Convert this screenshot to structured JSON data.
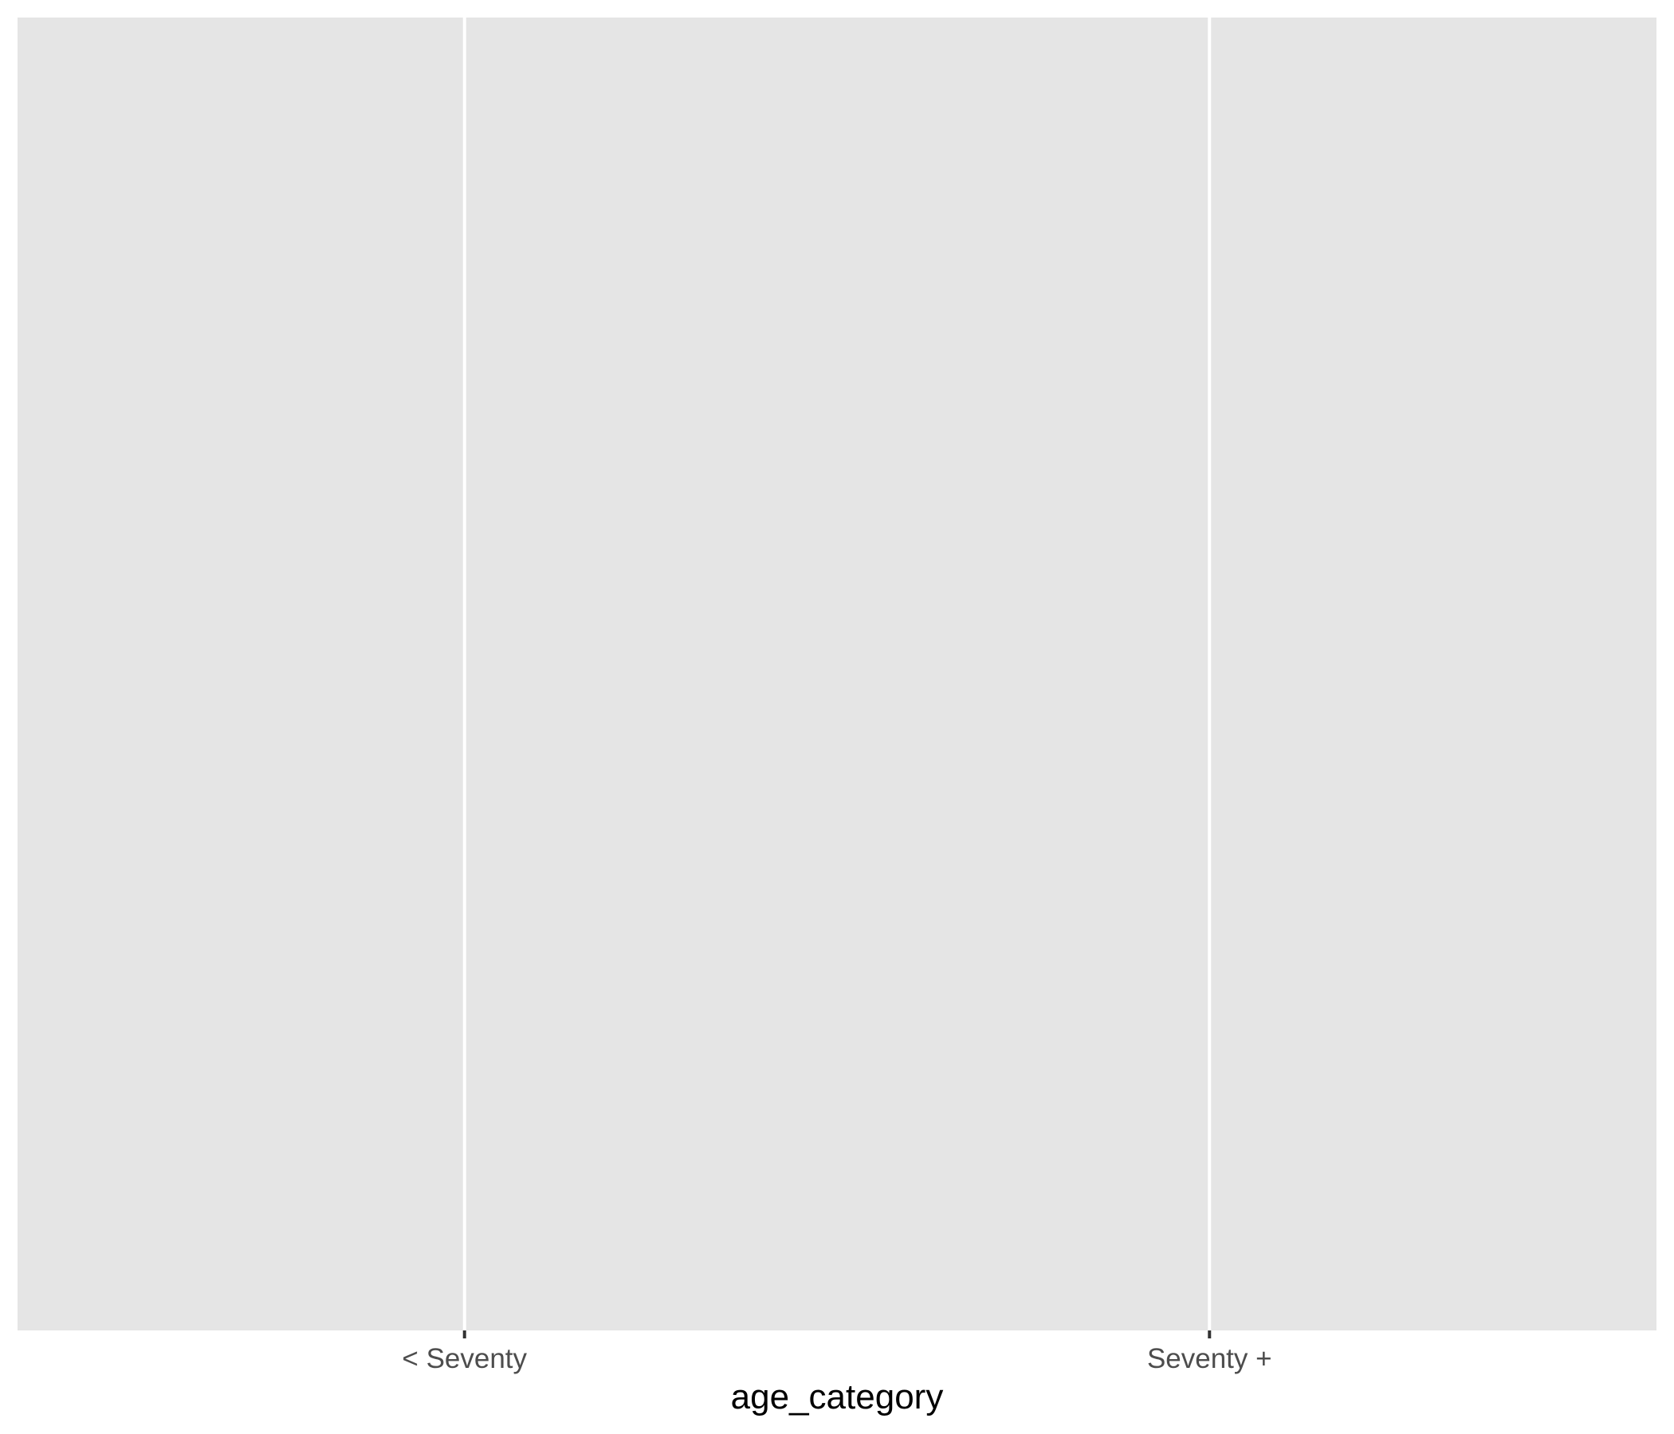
{
  "chart_data": {
    "type": "bar",
    "categories": [
      "< Seventy",
      "Seventy +"
    ],
    "series": [],
    "xlabel": "age_category",
    "ylabel": "",
    "grid": true,
    "colors": {
      "panel_background": "#e5e5e5",
      "grid_line": "#ffffff",
      "tick_mark": "#333333",
      "tick_label": "#4d4d4d",
      "axis_title": "#000000"
    }
  }
}
